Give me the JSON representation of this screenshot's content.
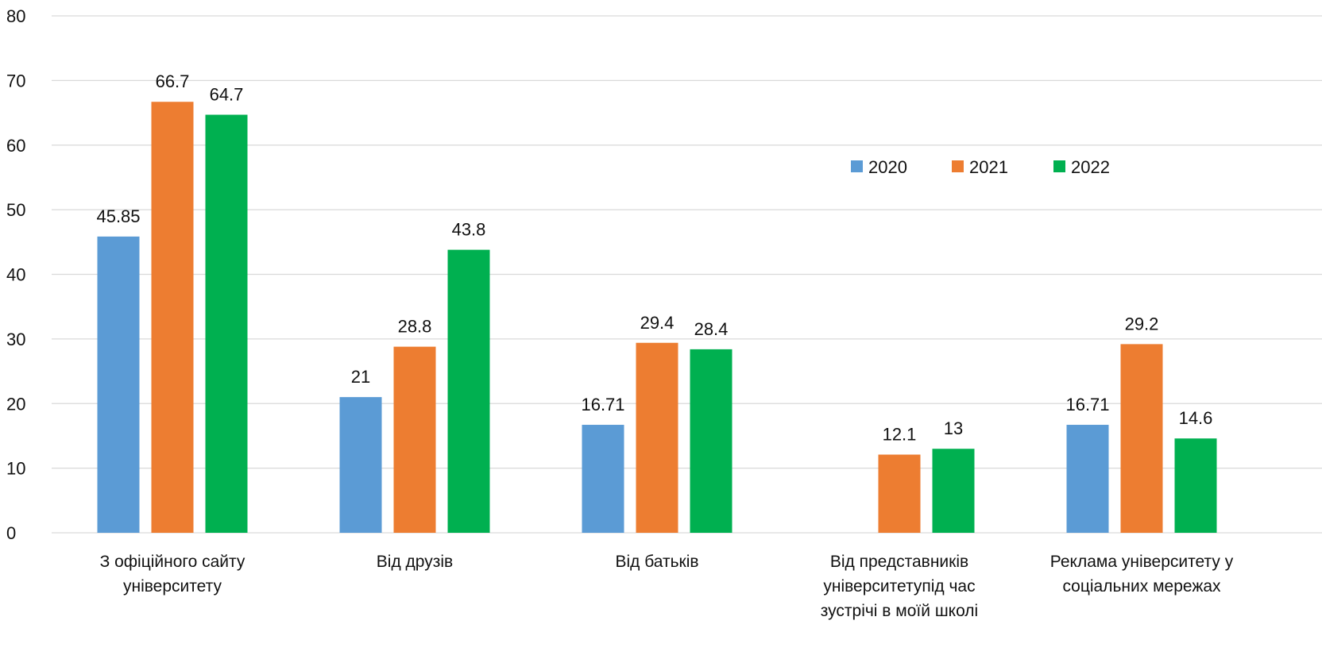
{
  "chart_data": {
    "type": "bar",
    "title": "",
    "xlabel": "",
    "ylabel": "",
    "ylim": [
      0,
      80
    ],
    "yticks": [
      0,
      10,
      20,
      30,
      40,
      50,
      60,
      70,
      80
    ],
    "grid": true,
    "legend_position": "top-right",
    "categories": [
      [
        "З офіційного сайту",
        "університету"
      ],
      [
        "Від друзів"
      ],
      [
        "Від батьків"
      ],
      [
        "Від представників",
        "університетупід час",
        "зустрічі в моїй школі"
      ],
      [
        "Реклама університету у",
        "соціальних мережах"
      ]
    ],
    "series": [
      {
        "name": "2020",
        "color": "#5b9bd5",
        "values": [
          45.85,
          21,
          16.71,
          null,
          16.71
        ]
      },
      {
        "name": "2021",
        "color": "#ed7d31",
        "values": [
          66.7,
          28.8,
          29.4,
          12.1,
          29.2
        ]
      },
      {
        "name": "2022",
        "color": "#00b050",
        "values": [
          64.7,
          43.8,
          28.4,
          13,
          14.6
        ]
      }
    ]
  }
}
